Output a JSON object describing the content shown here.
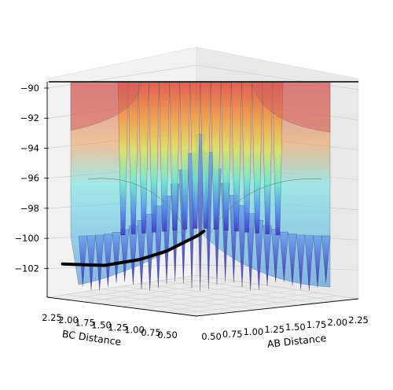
{
  "chart_data": {
    "type": "surface3d",
    "title": "",
    "xlabel": "AB Distance",
    "ylabel": "BC Distance",
    "zlabel": "",
    "x_ticks": [
      "0.50",
      "0.75",
      "1.00",
      "1.25",
      "1.50",
      "1.75",
      "2.00",
      "2.25"
    ],
    "y_ticks": [
      "0.50",
      "0.75",
      "1.00",
      "1.25",
      "1.50",
      "1.75",
      "2.00",
      "2.25"
    ],
    "z_ticks": [
      "−90",
      "−92",
      "−94",
      "−96",
      "−98",
      "−100",
      "−102"
    ],
    "x_range": [
      0.5,
      2.25
    ],
    "y_range": [
      0.5,
      2.25
    ],
    "z_range": [
      -103.5,
      -90
    ],
    "grid": true,
    "colormap": "jet",
    "trajectory": {
      "color": "#000000",
      "points": [
        {
          "ab": 0.62,
          "bc": 2.2,
          "z": -102.8
        },
        {
          "ab": 0.66,
          "bc": 1.75,
          "z": -102.6
        },
        {
          "ab": 0.72,
          "bc": 1.4,
          "z": -102.0
        },
        {
          "ab": 0.78,
          "bc": 1.15,
          "z": -101.3
        },
        {
          "ab": 0.85,
          "bc": 1.0,
          "z": -100.6
        },
        {
          "ab": 0.9,
          "bc": 0.92,
          "z": -100.2
        },
        {
          "ab": 0.93,
          "bc": 0.88,
          "z": -99.9
        }
      ]
    }
  }
}
